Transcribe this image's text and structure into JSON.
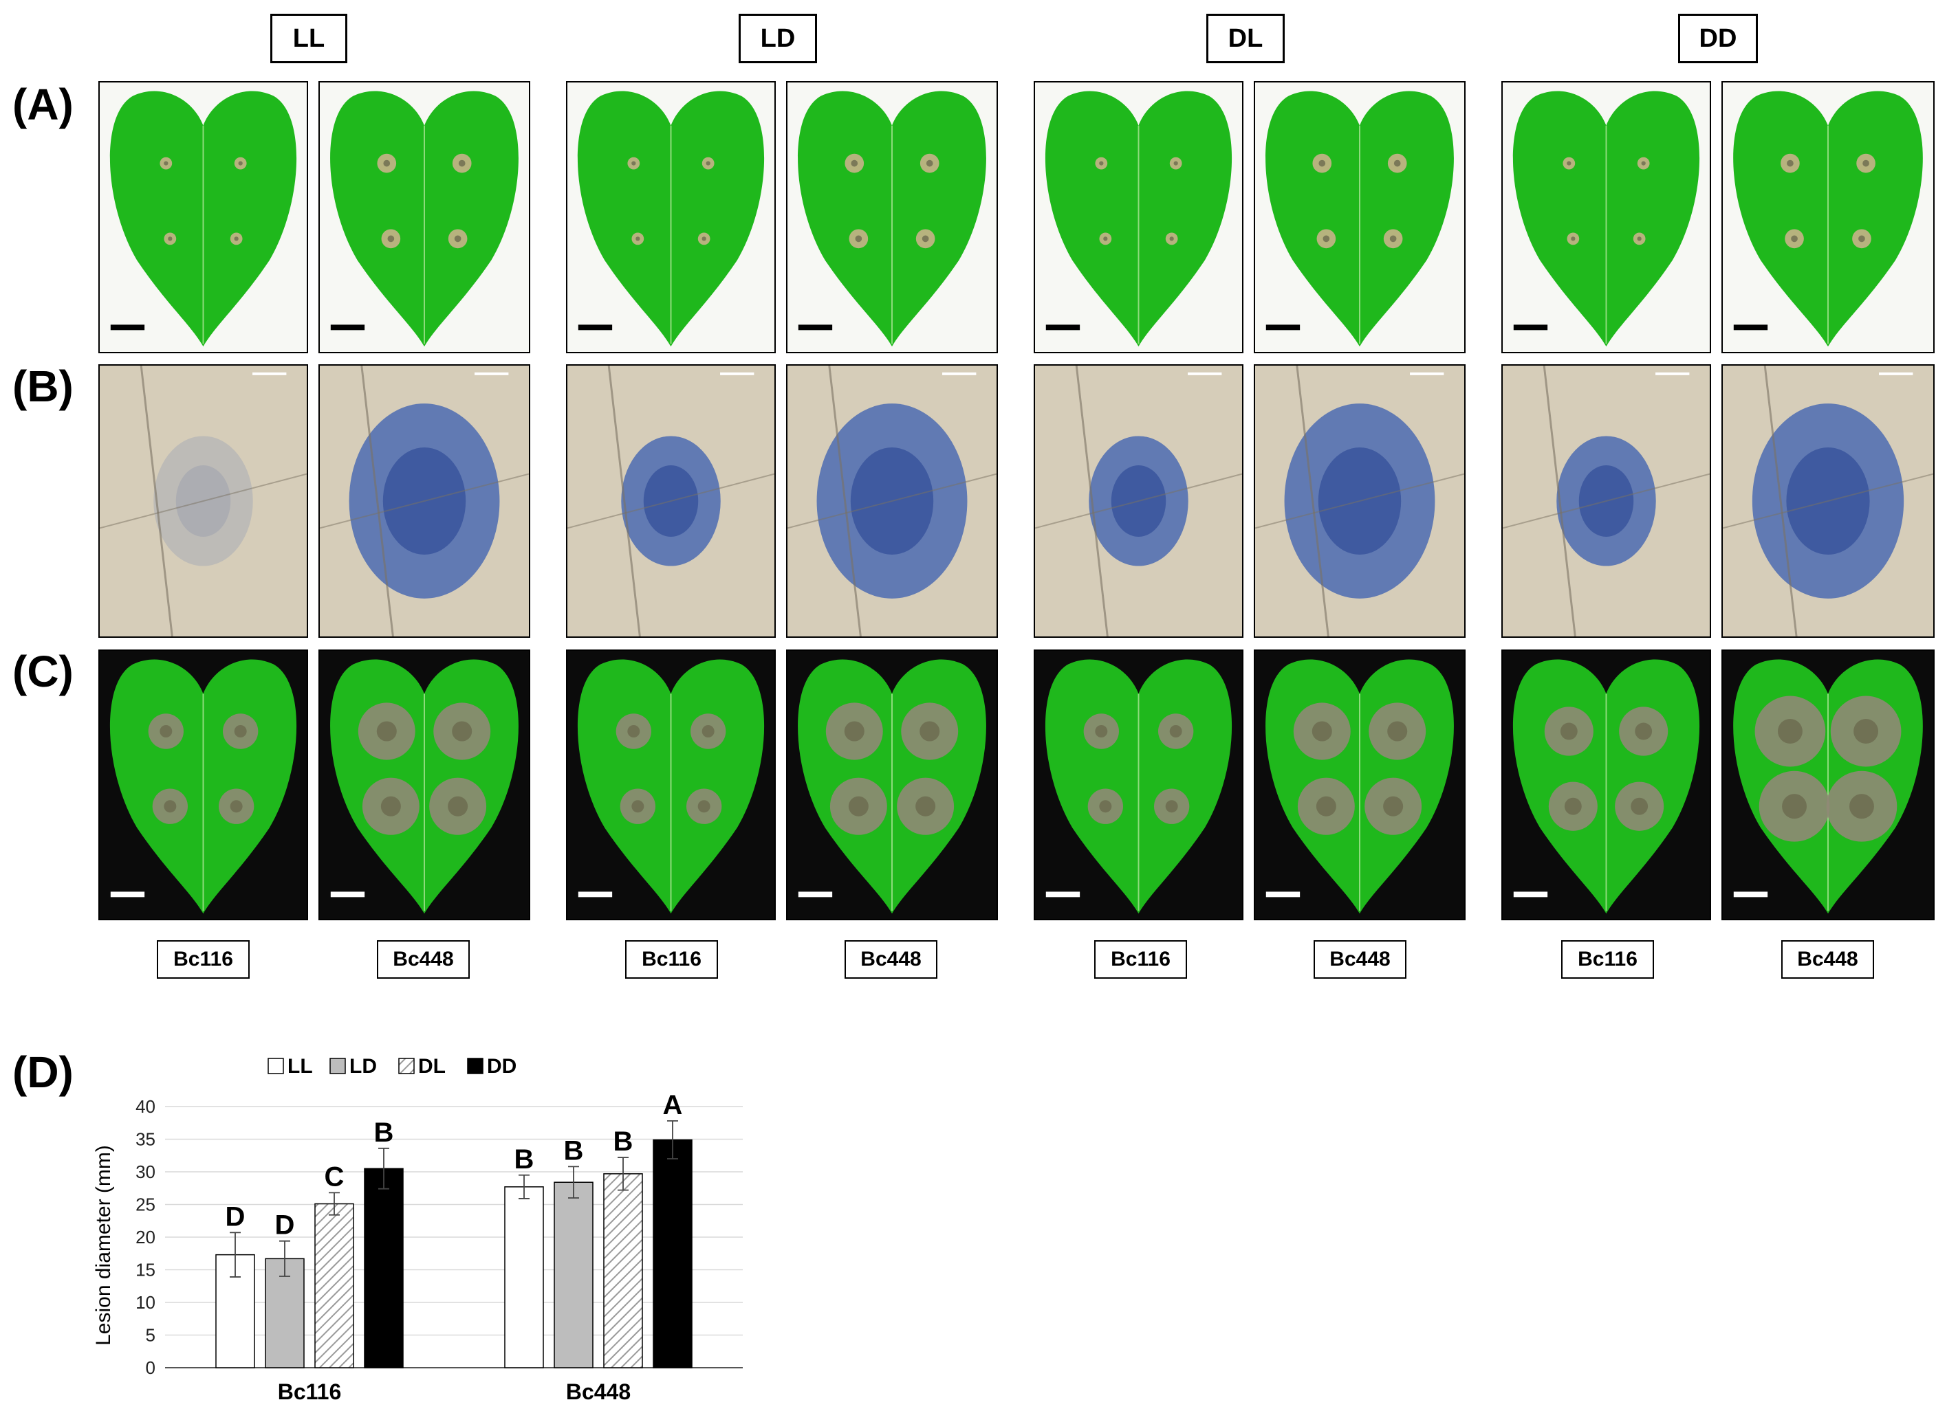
{
  "panels": {
    "a": "(A)",
    "b": "(B)",
    "c": "(C)",
    "d": "(D)"
  },
  "conditions": [
    "LL",
    "LD",
    "DL",
    "DD"
  ],
  "strains": [
    "Bc116",
    "Bc448",
    "Bc116",
    "Bc448",
    "Bc116",
    "Bc448",
    "Bc116",
    "Bc448"
  ],
  "colors": {
    "leaf_green": "#1fb81c",
    "lesion_tan": "#c8b38a",
    "trypan_blue": "#2f57b0",
    "bar_LL": "#ffffff",
    "bar_LD": "#bdbdbd",
    "bar_DD": "#000000"
  },
  "chart_data": {
    "type": "bar",
    "categories": [
      "Bc116",
      "Bc448"
    ],
    "series": [
      {
        "name": "LL",
        "values": [
          17.3,
          27.7
        ],
        "errors": [
          3.4,
          1.8
        ],
        "letters": [
          "D",
          "B"
        ]
      },
      {
        "name": "LD",
        "values": [
          16.7,
          28.4
        ],
        "errors": [
          2.7,
          2.4
        ],
        "letters": [
          "D",
          "B"
        ]
      },
      {
        "name": "DL",
        "values": [
          25.1,
          29.7
        ],
        "errors": [
          1.7,
          2.5
        ],
        "letters": [
          "C",
          "B"
        ]
      },
      {
        "name": "DD",
        "values": [
          30.5,
          34.9
        ],
        "errors": [
          3.1,
          2.9
        ],
        "letters": [
          "B",
          "A"
        ]
      }
    ],
    "ylabel": "Lesion diameter (mm)",
    "xlabel": "",
    "ylim": [
      0,
      40
    ],
    "yticks": [
      0,
      5,
      10,
      15,
      20,
      25,
      30,
      35,
      40
    ],
    "grid": true,
    "legend": "top"
  }
}
